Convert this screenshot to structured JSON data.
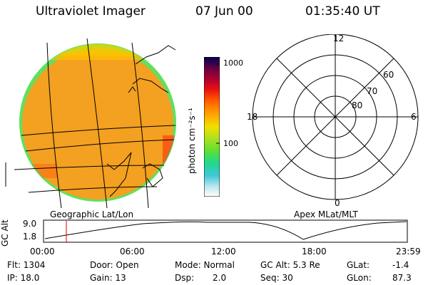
{
  "header": {
    "instrument": "Ultraviolet Imager",
    "date": "07 Jun 00",
    "time": "01:35:40 UT"
  },
  "colorbar": {
    "unit_label": "photon cm⁻²s⁻¹",
    "tick_1000": "1000",
    "tick_100": "100",
    "colors": [
      "#ffffff",
      "#bfe8ee",
      "#40c8d8",
      "#20d890",
      "#60e030",
      "#b0e020",
      "#f0e000",
      "#ffb000",
      "#ff8800",
      "#ff5000",
      "#e81010",
      "#b00030",
      "#700040",
      "#300050",
      "#000040"
    ]
  },
  "left_panel": {
    "caption": "Geographic Lat/Lon",
    "fill_color": "#f4a020"
  },
  "polar_plot": {
    "caption": "Apex MLat/MLT",
    "mlt_12": "12",
    "mlt_18": "18",
    "mlt_6": "6",
    "mlt_0": "0",
    "lat_60": "60",
    "lat_70": "70",
    "lat_80": "80"
  },
  "altitude_plot": {
    "ylabel": "GC Alt",
    "ytick_top": "9.0",
    "ytick_bottom": "1.8",
    "xticks": [
      "00:00",
      "06:00",
      "12:00",
      "18:00",
      "23:59"
    ],
    "current_time_marker_color": "#e00000"
  },
  "info": {
    "flt": "Flt: 1304",
    "ip": "IP: 18.0",
    "door": "Door: Open",
    "gain": "Gain: 13",
    "mode": "Mode: Normal",
    "dsp_label": "Dsp:",
    "dsp_value": "2.0",
    "gc_alt": "GC Alt: 5.3 Re",
    "seq": "Seq: 30",
    "glat_label": "GLat:",
    "glat_value": "-1.4",
    "glon_label": "GLon:",
    "glon_value": "87.3"
  }
}
